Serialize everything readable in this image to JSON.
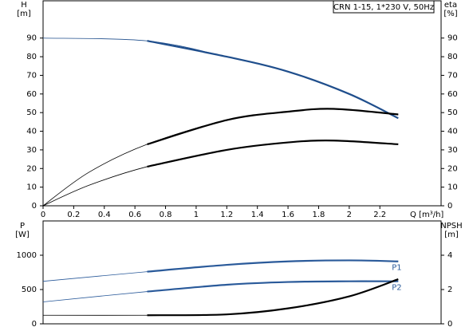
{
  "legend_title": "CRN 1-15, 1*230 V, 50Hz",
  "chart_data": [
    {
      "type": "line",
      "x_label": "Q [m³/h]",
      "y_label": "H",
      "y_unit": "[m]",
      "y2_label": "eta",
      "y2_unit": "[%]",
      "xlim": [
        0,
        2.6
      ],
      "xticks": [
        0,
        0.2,
        0.4,
        0.6,
        0.8,
        1.0,
        1.2,
        1.4,
        1.6,
        1.8,
        2.0,
        2.2
      ],
      "ylim": [
        0,
        110
      ],
      "yticks": [
        0,
        10,
        20,
        30,
        40,
        50,
        60,
        70,
        80,
        90
      ],
      "y2lim": [
        0,
        110
      ],
      "y2ticks": [
        0,
        10,
        20,
        30,
        40,
        50,
        60,
        70,
        80,
        90
      ],
      "grid": false,
      "operating_range": [
        0.68,
        2.32
      ],
      "series": [
        {
          "color": "#1f4e8c",
          "x": [
            0,
            0.68,
            1.2,
            1.6,
            2.0,
            2.32
          ],
          "values": [
            90,
            88.5,
            80,
            72,
            60,
            47
          ]
        },
        {
          "color": "#000000",
          "axis": "y2",
          "x": [
            0,
            0.3,
            0.68,
            1.2,
            1.6,
            1.9,
            2.32
          ],
          "values": [
            0,
            18,
            33,
            46,
            50.5,
            52,
            49
          ]
        },
        {
          "color": "#000000",
          "axis": "y2",
          "x": [
            0,
            0.3,
            0.68,
            1.2,
            1.6,
            1.9,
            2.32
          ],
          "values": [
            0,
            11,
            21,
            30,
            34,
            35,
            33
          ]
        }
      ]
    },
    {
      "type": "line",
      "y_label": "P",
      "y_unit": "[W]",
      "y2_label": "NPSH",
      "y2_unit": "[m]",
      "xlim": [
        0,
        2.6
      ],
      "ylim": [
        0,
        1500
      ],
      "yticks": [
        0,
        500,
        1000
      ],
      "y2lim": [
        0,
        6
      ],
      "y2ticks": [
        0,
        2,
        4
      ],
      "grid": false,
      "operating_range": [
        0.68,
        2.32
      ],
      "series": [
        {
          "name": "P1",
          "color": "#2a5a9a",
          "x": [
            0,
            0.68,
            1.2,
            1.6,
            2.0,
            2.32
          ],
          "values": [
            620,
            760,
            860,
            910,
            925,
            910
          ]
        },
        {
          "name": "P2",
          "color": "#2a5a9a",
          "x": [
            0,
            0.68,
            1.2,
            1.6,
            2.0,
            2.32
          ],
          "values": [
            320,
            470,
            570,
            610,
            620,
            620
          ]
        },
        {
          "color": "#000000",
          "axis": "y2",
          "x": [
            0,
            0.68,
            1.2,
            1.6,
            2.0,
            2.32
          ],
          "values": [
            0.5,
            0.5,
            0.55,
            0.9,
            1.6,
            2.6
          ]
        }
      ]
    }
  ]
}
